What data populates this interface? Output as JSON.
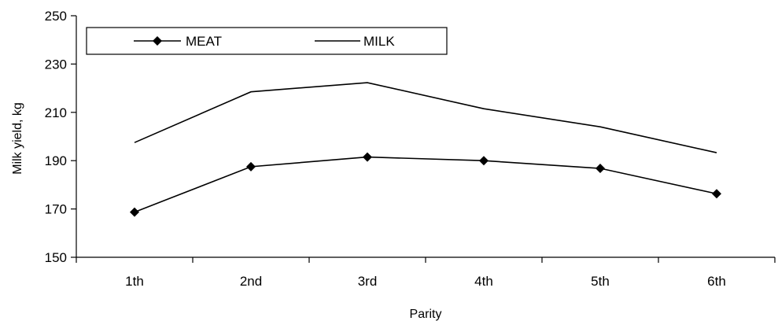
{
  "chart_data": {
    "type": "line",
    "categories": [
      "1th",
      "2nd",
      "3rd",
      "4th",
      "5th",
      "6th"
    ],
    "series": [
      {
        "name": "MEAT",
        "values": [
          168.7,
          187.5,
          191.5,
          190.0,
          186.8,
          176.3
        ],
        "marker": "diamond",
        "color": "#000000"
      },
      {
        "name": "MILK",
        "values": [
          197.5,
          218.5,
          222.3,
          211.5,
          204.0,
          193.3
        ],
        "marker": "none",
        "color": "#000000"
      }
    ],
    "title": "",
    "xlabel": "Parity",
    "ylabel": "Milk yield, kg",
    "ylim": [
      150,
      250
    ],
    "yticks": [
      "150",
      "170",
      "190",
      "210",
      "230",
      "250"
    ],
    "grid": false,
    "legend_position": "top-left"
  }
}
